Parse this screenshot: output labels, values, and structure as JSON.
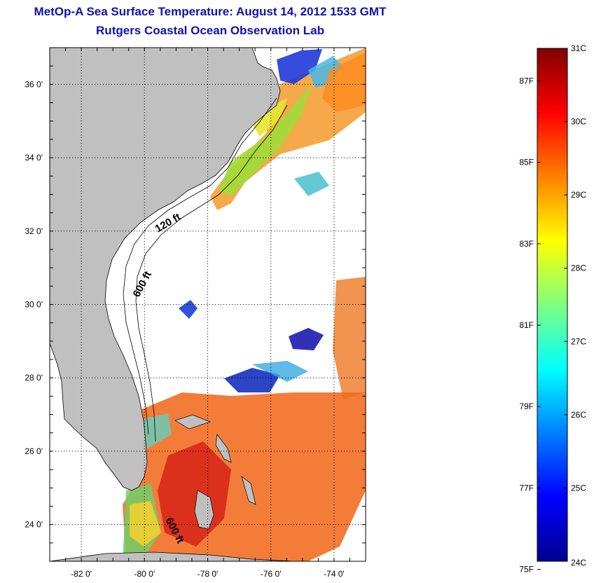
{
  "title": "MetOp-A Sea Surface Temperature:  August 14, 2012 1533 GMT",
  "subtitle": "Rutgers Coastal Ocean Observation Lab",
  "map": {
    "lon_range": [
      -83,
      -73
    ],
    "lat_range": [
      23,
      37
    ],
    "lon_ticks": [
      {
        "value": -82,
        "label": "-82 0'"
      },
      {
        "value": -80,
        "label": "-80 0'"
      },
      {
        "value": -78,
        "label": "-78 0'"
      },
      {
        "value": -76,
        "label": "-76 0'"
      },
      {
        "value": -74,
        "label": "-74 0'"
      }
    ],
    "lat_ticks": [
      {
        "value": 24,
        "label": "24 0'"
      },
      {
        "value": 26,
        "label": "26 0'"
      },
      {
        "value": 28,
        "label": "28 0'"
      },
      {
        "value": 30,
        "label": "30 0'"
      },
      {
        "value": 32,
        "label": "32 0'"
      },
      {
        "value": 34,
        "label": "34 0'"
      },
      {
        "value": 36,
        "label": "36 0'"
      }
    ],
    "contour_labels": [
      "120 ft",
      "600 ft",
      "600 ft"
    ],
    "colors": {
      "land": "#c0c0c0",
      "grid": "#000000"
    }
  },
  "colorbar": {
    "celsius_range": [
      24,
      31
    ],
    "c_labels": [
      {
        "value": 31,
        "label": "31C"
      },
      {
        "value": 30,
        "label": "30C"
      },
      {
        "value": 29,
        "label": "29C"
      },
      {
        "value": 28,
        "label": "28C"
      },
      {
        "value": 27,
        "label": "27C"
      },
      {
        "value": 26,
        "label": "26C"
      },
      {
        "value": 25,
        "label": "25C"
      },
      {
        "value": 24,
        "label": "24C"
      }
    ],
    "f_labels": [
      {
        "value": 87,
        "label": "87F"
      },
      {
        "value": 85,
        "label": "85F"
      },
      {
        "value": 83,
        "label": "83F"
      },
      {
        "value": 81,
        "label": "81F"
      },
      {
        "value": 79,
        "label": "79F"
      },
      {
        "value": 77,
        "label": "77F"
      },
      {
        "value": 75,
        "label": "75F"
      }
    ]
  }
}
